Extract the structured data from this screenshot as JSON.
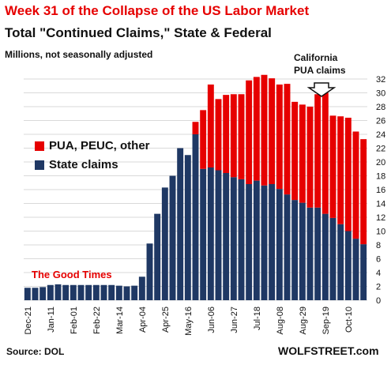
{
  "chart_data": {
    "type": "bar",
    "title": "Week 31 of the Collapse of the US Labor Market",
    "subtitle": "Total \"Continued Claims,\" State & Federal",
    "units": "Millions, not seasonally adjusted",
    "annotation": [
      "California",
      "PUA claims"
    ],
    "text_label": "The Good Times",
    "source": "Source: DOL",
    "brand": "WOLFSTREET.com",
    "ylim": [
      0,
      32
    ],
    "yticks": [
      0,
      2,
      4,
      6,
      8,
      10,
      12,
      14,
      16,
      18,
      20,
      22,
      24,
      26,
      28,
      30,
      32
    ],
    "xtick_labels": [
      "Dec-21",
      "Jan-11",
      "Feb-01",
      "Feb-22",
      "Mar-14",
      "Apr-04",
      "Apr-25",
      "May-16",
      "Jun-06",
      "Jun-27",
      "Jul-18",
      "Aug-08",
      "Aug-29",
      "Sep-19",
      "Oct-10"
    ],
    "legend": [
      "PUA, PEUC, other",
      "State claims"
    ],
    "colors": {
      "federal": "#e60000",
      "state": "#1f3864"
    },
    "series": [
      {
        "name": "State claims",
        "values": [
          1.8,
          1.8,
          1.9,
          2.2,
          2.3,
          2.2,
          2.2,
          2.2,
          2.2,
          2.2,
          2.2,
          2.2,
          2.1,
          2.0,
          2.1,
          3.4,
          8.2,
          12.5,
          16.3,
          18.0,
          22.0,
          21.0,
          24.0,
          19.0,
          19.2,
          18.8,
          18.4,
          17.8,
          17.5,
          16.8,
          17.3,
          16.6,
          16.8,
          16.1,
          15.3,
          14.5,
          14.1,
          13.4,
          13.4,
          12.5,
          11.9,
          11.0,
          10.0,
          8.9,
          8.1
        ]
      },
      {
        "name": "PUA, PEUC, other",
        "values": [
          0,
          0,
          0,
          0,
          0,
          0,
          0,
          0,
          0,
          0,
          0,
          0,
          0,
          0,
          0,
          0,
          0,
          0,
          0,
          0,
          0,
          0,
          1.8,
          8.5,
          12.0,
          10.3,
          11.3,
          12.0,
          12.3,
          15.0,
          15.0,
          16.0,
          15.3,
          15.1,
          16.0,
          14.2,
          14.2,
          14.6,
          16.4,
          17.5,
          14.8,
          15.6,
          16.4,
          15.5,
          15.2
        ]
      }
    ]
  }
}
